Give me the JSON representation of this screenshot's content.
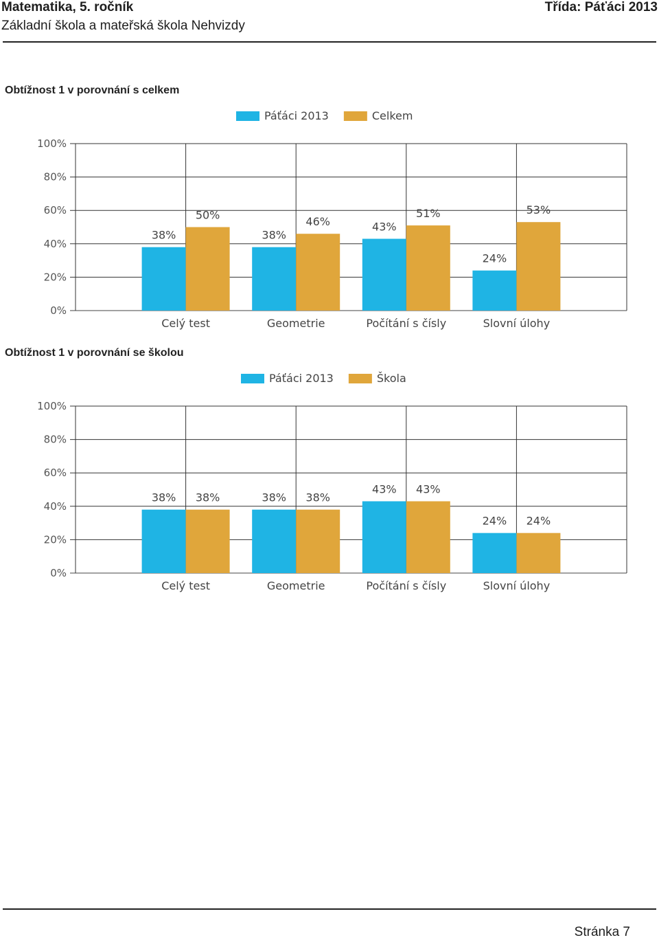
{
  "header": {
    "title": "Matematika, 5. ročník",
    "class_label": "Třída: Páťáci 2013",
    "school": "Základní škola a mateřská škola Nehvizdy"
  },
  "footer": {
    "page": "Stránka 7"
  },
  "colors": {
    "series_1": "#1fb4e4",
    "series_2": "#e0a63b"
  },
  "chart_data": [
    {
      "type": "bar",
      "title": "Obtížnost 1 v porovnání s celkem",
      "categories": [
        "Celý test",
        "Geometrie",
        "Počítání s čísly",
        "Slovní úlohy"
      ],
      "series": [
        {
          "name": "Páťáci 2013",
          "values": [
            38,
            38,
            43,
            24
          ],
          "labels": [
            "38%",
            "38%",
            "43%",
            "24%"
          ]
        },
        {
          "name": "Celkem",
          "values": [
            50,
            46,
            51,
            53
          ],
          "labels": [
            "50%",
            "46%",
            "51%",
            "53%"
          ]
        }
      ],
      "yticks": [
        "0%",
        "20%",
        "40%",
        "60%",
        "80%",
        "100%"
      ],
      "ylim": [
        0,
        100
      ],
      "grid": true,
      "legend": "top-center"
    },
    {
      "type": "bar",
      "title": "Obtížnost 1 v porovnání se školou",
      "categories": [
        "Celý test",
        "Geometrie",
        "Počítání s čísly",
        "Slovní úlohy"
      ],
      "series": [
        {
          "name": "Páťáci 2013",
          "values": [
            38,
            38,
            43,
            24
          ],
          "labels": [
            "38%",
            "38%",
            "43%",
            "24%"
          ]
        },
        {
          "name": "Škola",
          "values": [
            38,
            38,
            43,
            24
          ],
          "labels": [
            "38%",
            "38%",
            "43%",
            "24%"
          ]
        }
      ],
      "yticks": [
        "0%",
        "20%",
        "40%",
        "60%",
        "80%",
        "100%"
      ],
      "ylim": [
        0,
        100
      ],
      "grid": true,
      "legend": "top-center"
    }
  ]
}
